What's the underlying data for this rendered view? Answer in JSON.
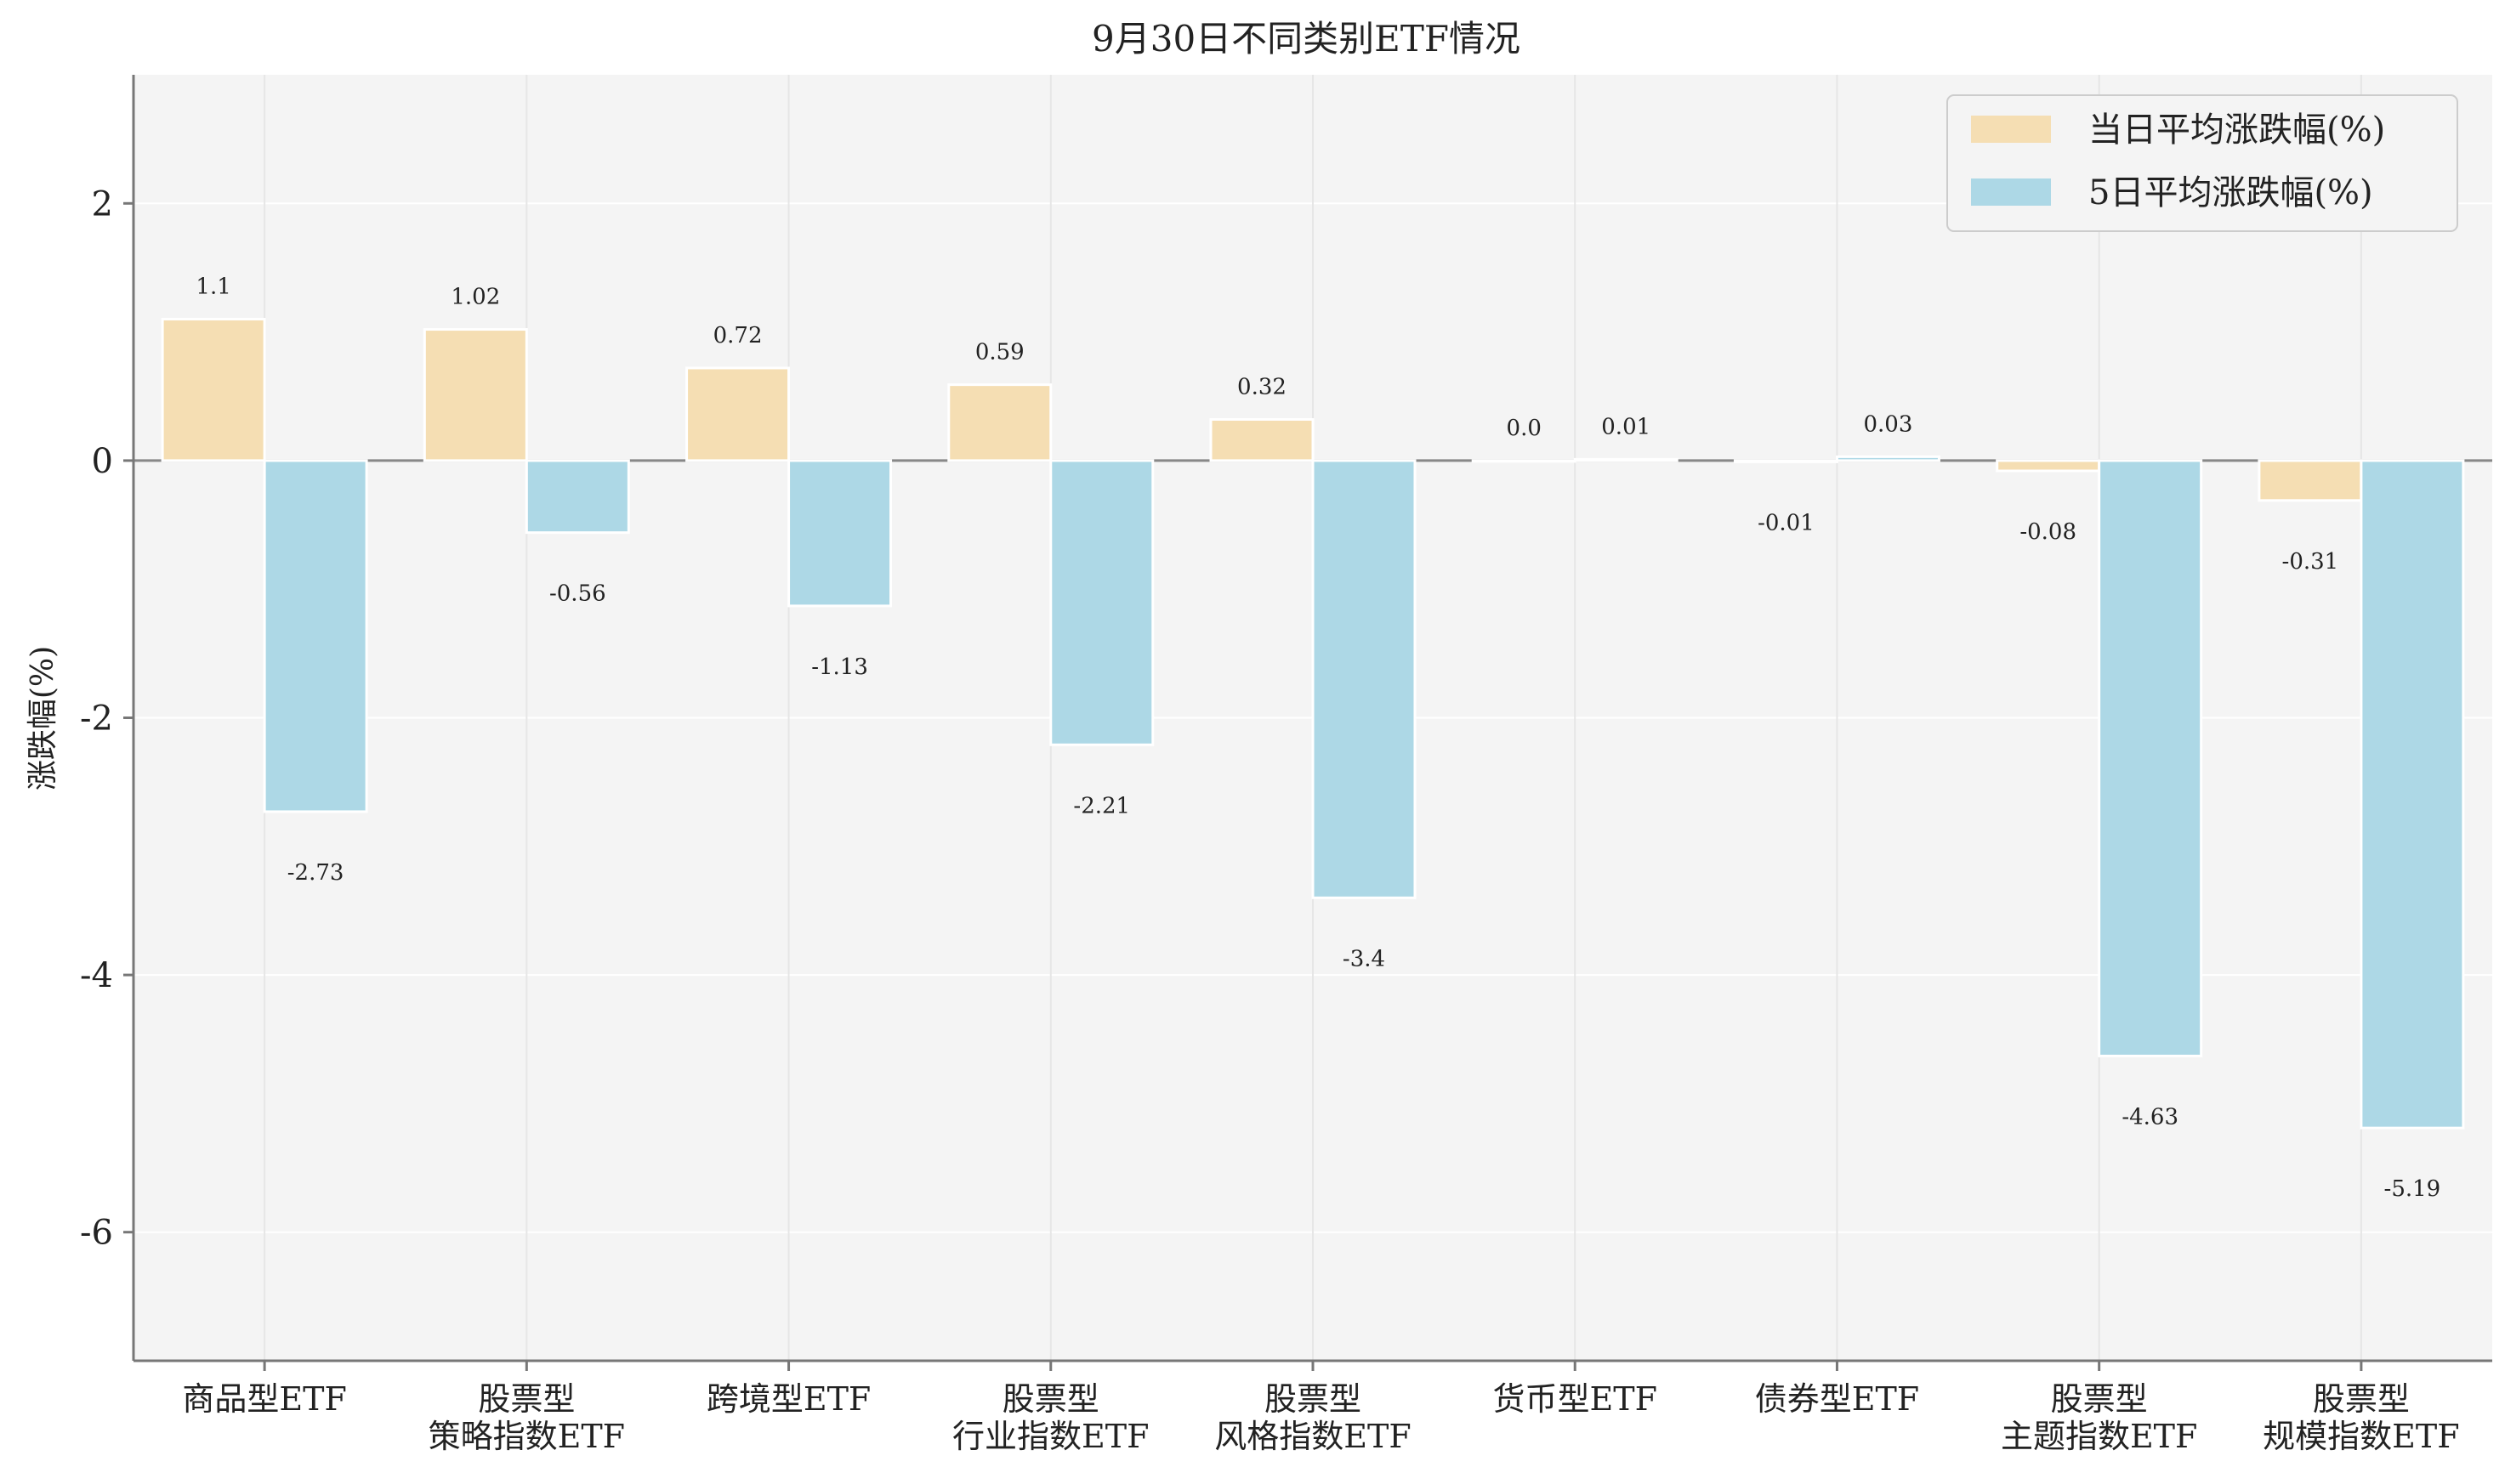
{
  "chart_data": {
    "type": "bar",
    "title": "9月30日不同类别ETF情况",
    "xlabel": "",
    "ylabel": "涨跌幅(%)",
    "ylim": [
      -7,
      3
    ],
    "yticks": [
      2,
      0,
      -2,
      -4,
      -6
    ],
    "grid": true,
    "legend_position": "top-right",
    "categories": [
      [
        "商品型ETF"
      ],
      [
        "股票型",
        "策略指数ETF"
      ],
      [
        "跨境型ETF"
      ],
      [
        "股票型",
        "行业指数ETF"
      ],
      [
        "股票型",
        "风格指数ETF"
      ],
      [
        "货币型ETF"
      ],
      [
        "债券型ETF"
      ],
      [
        "股票型",
        "主题指数ETF"
      ],
      [
        "股票型",
        "规模指数ETF"
      ]
    ],
    "series": [
      {
        "name": "当日平均涨跌幅(%)",
        "color": "#F5DEB3",
        "values": [
          1.1,
          1.02,
          0.72,
          0.59,
          0.32,
          0.0,
          -0.01,
          -0.08,
          -0.31
        ],
        "labels": [
          "1.1",
          "1.02",
          "0.72",
          "0.59",
          "0.32",
          "0.0",
          "-0.01",
          "-0.08",
          "-0.31"
        ]
      },
      {
        "name": "5日平均涨跌幅(%)",
        "color": "#ADD8E6",
        "values": [
          -2.73,
          -0.56,
          -1.13,
          -2.21,
          -3.4,
          0.01,
          0.03,
          -4.63,
          -5.19
        ],
        "labels": [
          "-2.73",
          "-0.56",
          "-1.13",
          "-2.21",
          "-3.4",
          "0.01",
          "0.03",
          "-4.63",
          "-5.19"
        ]
      }
    ]
  },
  "colors": {
    "plot_background": "#F4F4F4",
    "grid": "#FFFFFF",
    "axis": "#777777",
    "zero_line": "#888888"
  }
}
